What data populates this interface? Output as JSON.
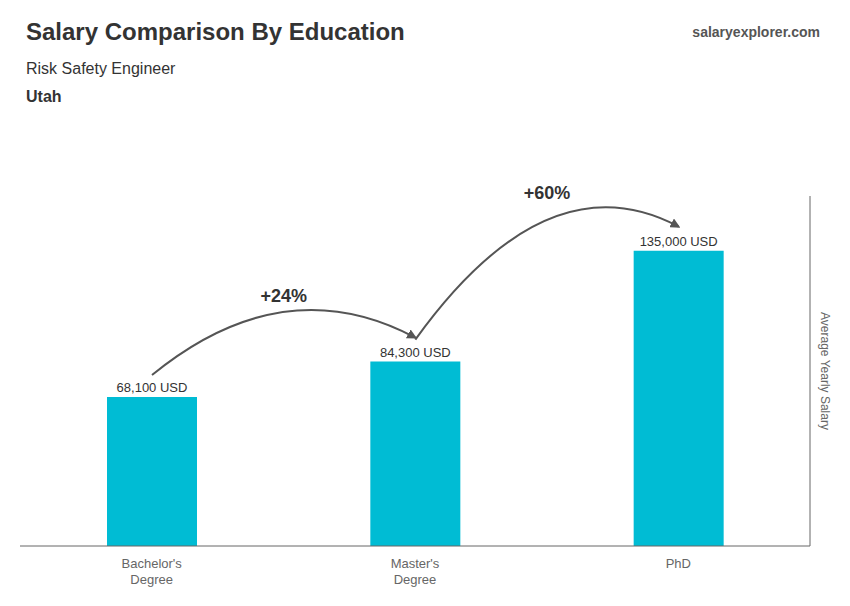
{
  "chart_data": {
    "type": "bar",
    "title": "Salary Comparison By Education",
    "subtitle": "Risk Safety Engineer",
    "y_label": "Average Yearly Salary",
    "categories": [
      "Bachelor's\nDegree",
      "Master's\nDegree",
      "PhD"
    ],
    "values": [
      68100,
      84300,
      135000
    ],
    "value_labels": [
      "68,100 USD",
      "84,300 USD",
      "135,000 USD"
    ],
    "data_labels": true,
    "color": "#00bcd4",
    "ylim": [
      0,
      160000
    ],
    "tick_labels": "x",
    "grid": false,
    "annotations": [
      {
        "text": "Utah"
      },
      {
        "text": "salaryexplorer.com"
      },
      {
        "text": "+24%",
        "from": "Bachelor's\nDegree",
        "to": "Master's\nDegree"
      },
      {
        "text": "+60%",
        "from": "Master's\nDegree",
        "to": "PhD"
      }
    ]
  }
}
